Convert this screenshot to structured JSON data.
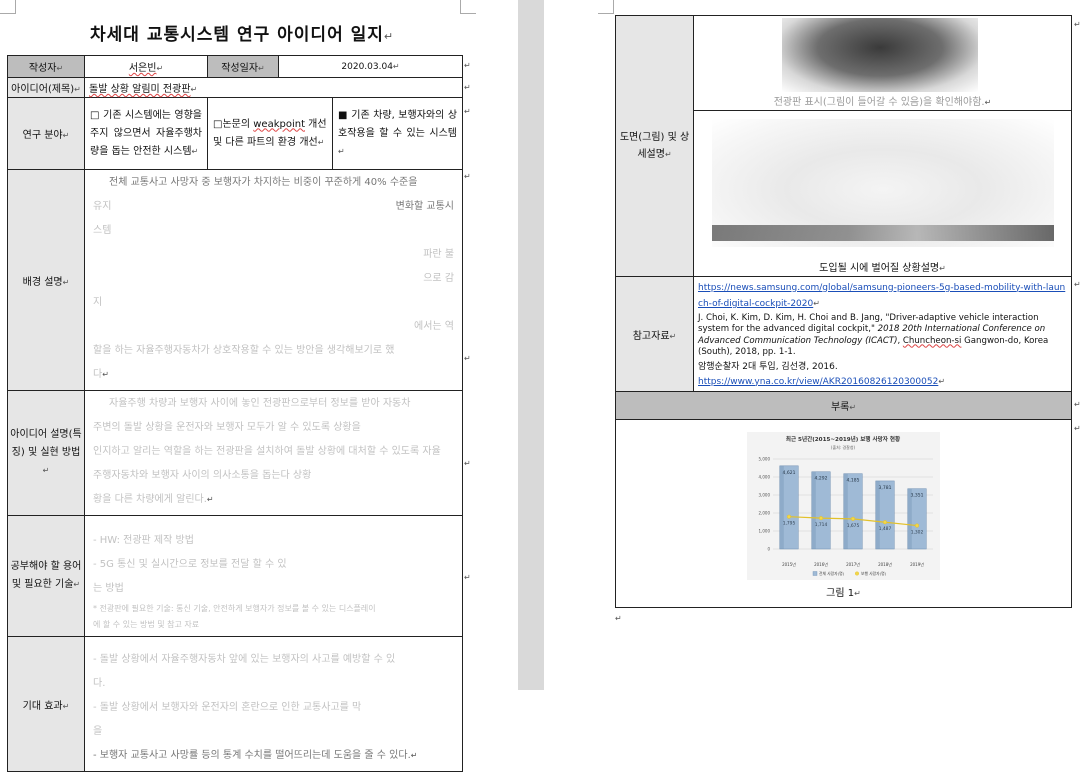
{
  "title": "차세대 교통시스템 연구 아이디어 일지",
  "return_mark": "↵",
  "row_author": {
    "author_label": "작성자",
    "author_value": "서은빈",
    "date_label": "작성일자",
    "date_value": "2020.03.04"
  },
  "row_idea": {
    "label": "아이디어(제목)",
    "value": "돌발 상황 알림미 전광판"
  },
  "row_field": {
    "label": "연구 분야",
    "option1": "□ 기존 시스템에는 영향을 주지 않으면서 자율주행차량을 돕는 안전한 시스템",
    "option2_prefix": "□논문의 ",
    "option2_word": "weakpoint",
    "option2_suffix": " 개선 및 다른 파트의 환경 개선",
    "option3": "■ 기존 차량, 보행자와의 상호작용을 할 수 있는 시스템"
  },
  "row_background": {
    "label": "배경 설명",
    "line1": "전체 교통사고 사망자 중 보행자가 차지하는 비중이 꾸준하게 40% 수준을",
    "line2_left": "유지",
    "line2_right": "변화할 교통시",
    "line3": "스템",
    "line4_right": "파란 불",
    "line5_right": "으로 감",
    "line6": "지",
    "line7_right": "에서는 역",
    "line8": "할을 하는 자율주행자동차가 상호작용할 수 있는 방안을 생각해보기로 했",
    "line9": "다"
  },
  "row_method": {
    "label": "아이디어 설명(특징) 및 실현 방법",
    "line1": "자율주행 차량과 보행자 사이에 놓인 전광판으로부터 정보를 받아 자동차",
    "line2": "주변의 돌발 상황을 운전자와 보행자 모두가 알 수 있도록 상황을",
    "line3": "인지하고 알리는 역할을 하는 전광판을 설치하여 돌발 상황에 대처할 수 있도록 자율",
    "line4": "주행자동차와 보행자 사이의 의사소통을 돕는다 상황",
    "line5": "황을 다른 차량에게 알린다."
  },
  "row_study": {
    "label": "공부해야 할 용어 및 필요한 기술",
    "line1": "- HW: 전광판 제작 방법",
    "line2": "- 5G 통신 및 실시간으로 정보를 전달 할 수 있",
    "line3": "는 방법",
    "line4": "* 전광판에 필요한 기술: 통신 기술, 안전하게 보행자가 정보를 볼 수 있는 디스플레이",
    "line5": "에 할 수 있는 방법 및 참고 자료"
  },
  "row_effect": {
    "label": "기대 효과",
    "line1": "- 돌발 상황에서 자율주행자동차 앞에 있는 보행자의 사고를 예방할 수 있",
    "line2": "다.",
    "line3": "- 돌발 상황에서 보행자와 운전자의 혼란으로 인한 교통사고를 막",
    "line4": "을",
    "line5": "- 보행자 교통사고 사망률 등의 통계 수치를 떨어뜨리는데 도움을 줄 수 있다."
  },
  "p2_drawing": {
    "label": "도면(그림) 및 상세설명",
    "caption_top": "전광판 표시(그림이 들어갈 수 있음)을 확인해야함.",
    "caption_bottom": "도입될 시에 벌어질 상황설명"
  },
  "p2_refs": {
    "label": "참고자료",
    "link1": "https://news.samsung.com/global/samsung-pioneers-5g-based-mobility-with-launch-of-digital-cockpit-2020",
    "ref_plain1": "J. Choi, K. Kim, D. Kim, H. Choi and B. Jang, \"Driver-adaptive vehicle interaction system for the advanced digital cockpit,\" ",
    "ref_italic": "2018 20th International Conference on Advanced Communication Technology (ICACT)",
    "ref_plain2": ", ",
    "ref_place": "Chuncheon-si",
    "ref_plain3": " Gangwon-do, Korea (South), 2018, pp. 1-1.",
    "korean_ref": "암행순찰자 2대 투입, 김선경, 2016.",
    "link2": "https://www.yna.co.kr/view/AKR20160826120300052"
  },
  "p2_appendix": {
    "header": "부록",
    "figure_caption": "그림 1"
  },
  "chart_data": {
    "type": "bar",
    "title": "최근 5년간(2015~2019년) 보행 사망자 현황",
    "subtitle": "(출처: 경찰청)",
    "categories": [
      "2015년",
      "2016년",
      "2017년",
      "2018년",
      "2019년"
    ],
    "series": [
      {
        "name": "전체 사망자(명)",
        "values": [
          4621,
          4292,
          4185,
          3781,
          3351
        ]
      },
      {
        "name": "보행 사망자(명)",
        "values": [
          1795,
          1714,
          1675,
          1487,
          1302
        ]
      }
    ],
    "yticks": [
      "0",
      "1,000",
      "2,000",
      "3,000",
      "4,000",
      "5,000"
    ],
    "ylim": [
      0,
      5000
    ],
    "grid": true,
    "legend": "bottom",
    "colors": {
      "bar": "#9fbad6",
      "bar_dark": "#6f8fb3",
      "line": "#e2c12b",
      "line_marker": "#f2d64a"
    }
  }
}
